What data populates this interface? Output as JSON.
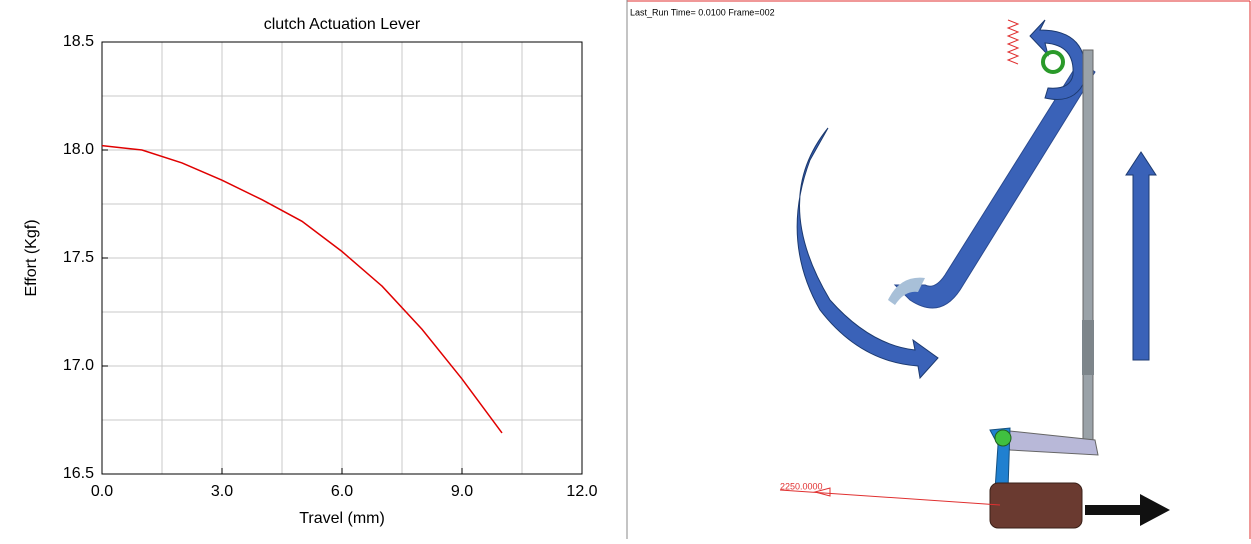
{
  "chart_data": {
    "type": "line",
    "title": "clutch Actuation Lever",
    "x_label": "Travel (mm)",
    "y_label": "Effort (Kgf)",
    "x": [
      0,
      1,
      2,
      3,
      4,
      5,
      6,
      7,
      8,
      9,
      10
    ],
    "values": [
      18.02,
      18.0,
      17.94,
      17.86,
      17.77,
      17.67,
      17.53,
      17.37,
      17.17,
      16.94,
      16.69
    ],
    "color": "#e00000",
    "xlim": [
      0,
      12
    ],
    "ylim": [
      16.5,
      18.5
    ],
    "xticks": [
      {
        "value": 0,
        "label": "0.0"
      },
      {
        "value": 3,
        "label": "3.0"
      },
      {
        "value": 6,
        "label": "6.0"
      },
      {
        "value": 9,
        "label": "9.0"
      },
      {
        "value": 12,
        "label": "12.0"
      }
    ],
    "yticks": [
      16.5,
      {
        "value": 17,
        "label": "17.0"
      },
      17.5,
      {
        "value": 18,
        "label": "18.0"
      },
      18.5
    ],
    "xminor": [
      1.5,
      4.5,
      7.5,
      10.5
    ],
    "yminor": [
      16.75,
      17.25,
      17.75,
      18.25
    ],
    "grid": true
  },
  "viewport": {
    "header": "Last_Run   Time= 0.0100  Frame=002",
    "force_label": "2250.0000"
  }
}
